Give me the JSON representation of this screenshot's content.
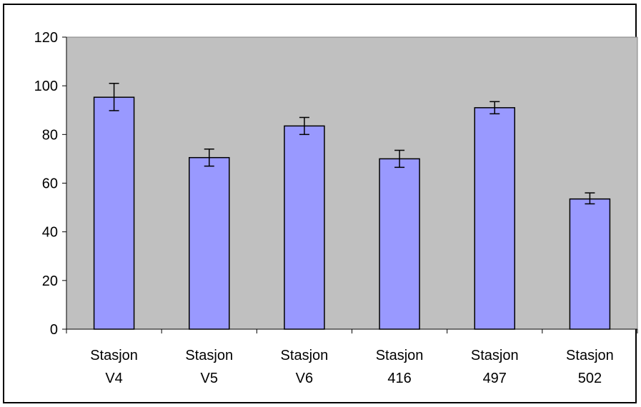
{
  "chart_data": {
    "type": "bar",
    "categories": [
      [
        "Stasjon",
        "V4"
      ],
      [
        "Stasjon",
        "V5"
      ],
      [
        "Stasjon",
        "V6"
      ],
      [
        "Stasjon",
        "416"
      ],
      [
        "Stasjon",
        "497"
      ],
      [
        "Stasjon",
        "502"
      ]
    ],
    "values": [
      95.3,
      70.5,
      83.5,
      70.0,
      91.0,
      53.5
    ],
    "error_low": [
      89.8,
      67.0,
      80.0,
      66.5,
      88.5,
      51.5
    ],
    "error_high": [
      101.0,
      74.0,
      87.0,
      73.5,
      93.5,
      56.0
    ],
    "yticks": [
      "0",
      "20",
      "40",
      "60",
      "80",
      "100",
      "120"
    ],
    "ylim": [
      0,
      120
    ],
    "grid": false,
    "legend": "none",
    "colors": {
      "bar_fill": "#9999ff",
      "plot_background": "#c0c0c0",
      "bar_stroke": "#000000"
    }
  }
}
